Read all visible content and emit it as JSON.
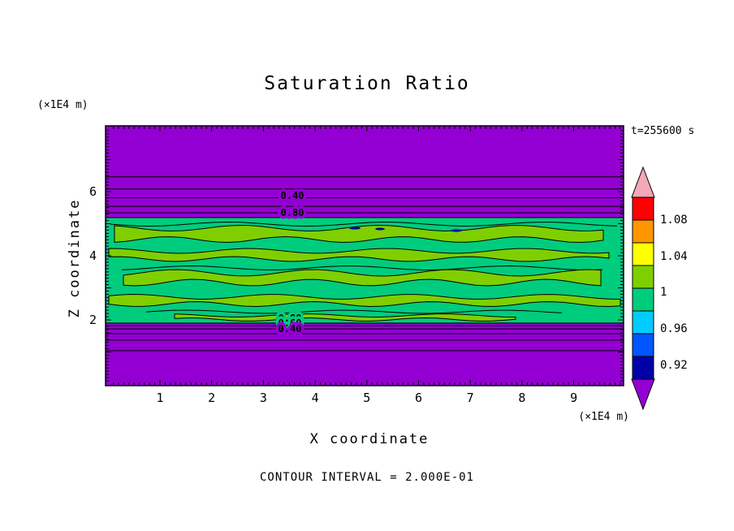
{
  "title": "Saturation Ratio",
  "labels": {
    "time": "t=255600 s",
    "y_unit": "(×1E4 m)",
    "x_unit": "(×1E4 m)",
    "xlabel": "X coordinate",
    "ylabel": "Z coordinate",
    "footer": "CONTOUR INTERVAL = 2.000E-01"
  },
  "axes": {
    "x": {
      "ticks": [
        "1",
        "2",
        "3",
        "4",
        "5",
        "6",
        "7",
        "8",
        "9"
      ],
      "tick_values": [
        1,
        2,
        3,
        4,
        5,
        6,
        7,
        8,
        9
      ],
      "range": [
        0,
        10
      ]
    },
    "z": {
      "ticks": [
        "2",
        "4",
        "6"
      ],
      "tick_values": [
        2,
        4,
        6
      ],
      "range": [
        0,
        8
      ]
    }
  },
  "contour_labels": {
    "t1": "0.40",
    "t2": "0.80",
    "b1": "0.80",
    "b2": "0.60",
    "b3": "0.40"
  },
  "colorbar": {
    "labels": [
      "1.08",
      "1.04",
      "1",
      "0.96",
      "0.92"
    ],
    "segments": [
      {
        "name": "red",
        "color": "#ff0000"
      },
      {
        "name": "orange",
        "color": "#ff9500"
      },
      {
        "name": "yellow",
        "color": "#ffff00"
      },
      {
        "name": "chartreuse",
        "color": "#7fcf00"
      },
      {
        "name": "spring-green",
        "color": "#00cc7e"
      },
      {
        "name": "cyan",
        "color": "#00ccff"
      },
      {
        "name": "blue",
        "color": "#0055ff"
      },
      {
        "name": "navy",
        "color": "#0000a8"
      }
    ],
    "arrow_top_color": "#f4a8b8",
    "arrow_bottom_color": "#9400d3"
  },
  "colors": {
    "purple": "#9400d3",
    "band": "#00cc7e",
    "patch": "#7fcf00",
    "speck": "#0000a8",
    "ink": "#000000"
  },
  "chart_data": {
    "type": "heatmap",
    "field": "Saturation Ratio",
    "title": "Saturation Ratio",
    "time_label": "t=255600 s",
    "time_s": 255600,
    "xlabel": "X coordinate",
    "ylabel": "Z coordinate",
    "x_units": "×1E4 m",
    "z_units": "×1E4 m",
    "x_range": [
      0,
      10
    ],
    "z_range": [
      0,
      8
    ],
    "contour_interval": 0.2,
    "colorbar_tick_values": [
      1.08,
      1.04,
      1,
      0.96,
      0.92
    ],
    "band_z": [
      1.9,
      5.19
    ],
    "horizontal_contour_z_top": [
      6.46,
      6.08,
      5.81,
      5.54,
      5.34
    ],
    "horizontal_contour_z_bottom": [
      1.82,
      1.72,
      1.57,
      1.37,
      1.04
    ],
    "labeled_levels_top": [
      0.4,
      0.8
    ],
    "labeled_levels_bottom": [
      0.8,
      0.6,
      0.4
    ],
    "bands": [
      {
        "z_from": 5.19,
        "z_to": 8.0,
        "value": "< 0.4 (low saturation)",
        "color": "#9400d3"
      },
      {
        "z_from": 1.9,
        "z_to": 5.19,
        "value": "≈ 1.0 with chartreuse patches ≈ 1.02",
        "color": "#00cc7e"
      },
      {
        "z_from": 0.0,
        "z_to": 1.9,
        "value": "< 0.4 (low saturation)",
        "color": "#9400d3"
      }
    ]
  }
}
